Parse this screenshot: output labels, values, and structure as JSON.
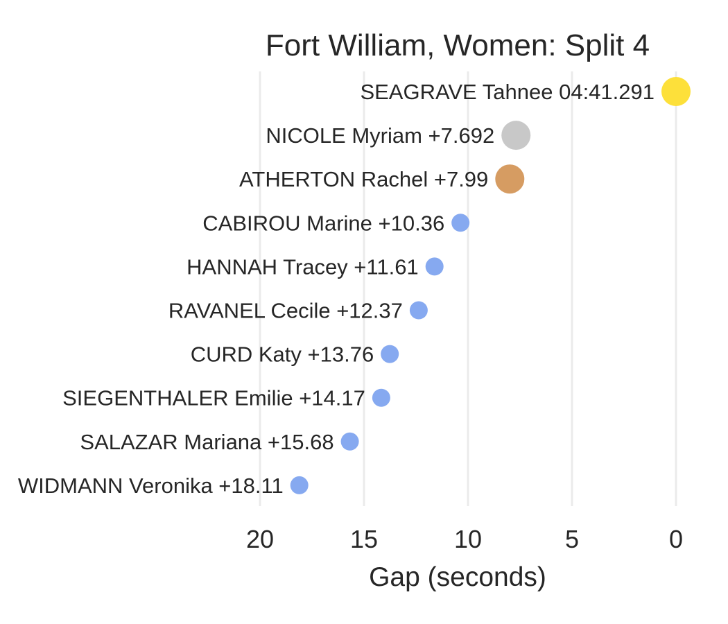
{
  "chart_data": {
    "type": "scatter",
    "title": "Fort William, Women: Split 4",
    "xlabel": "Gap (seconds)",
    "ylabel": "",
    "xlim": [
      20,
      0
    ],
    "x_reversed": true,
    "grid": true,
    "x_ticks": [
      20,
      15,
      10,
      5,
      0
    ],
    "points": [
      {
        "rider": "SEAGRAVE Tahnee",
        "label": "SEAGRAVE Tahnee 04:41.291",
        "gap": 0,
        "color": "#fde03a",
        "medal": "gold"
      },
      {
        "rider": "NICOLE Myriam",
        "label": "NICOLE Myriam +7.692",
        "gap": 7.692,
        "color": "#c8c8c8",
        "medal": "silver"
      },
      {
        "rider": "ATHERTON Rachel",
        "label": "ATHERTON Rachel +7.99",
        "gap": 7.99,
        "color": "#d69c62",
        "medal": "bronze"
      },
      {
        "rider": "CABIROU Marine",
        "label": "CABIROU Marine +10.36",
        "gap": 10.36,
        "color": "#86a9f0",
        "medal": ""
      },
      {
        "rider": "HANNAH Tracey",
        "label": "HANNAH Tracey +11.61",
        "gap": 11.61,
        "color": "#86a9f0",
        "medal": ""
      },
      {
        "rider": "RAVANEL Cecile",
        "label": "RAVANEL Cecile +12.37",
        "gap": 12.37,
        "color": "#86a9f0",
        "medal": ""
      },
      {
        "rider": "CURD Katy",
        "label": "CURD Katy +13.76",
        "gap": 13.76,
        "color": "#86a9f0",
        "medal": ""
      },
      {
        "rider": "SIEGENTHALER Emilie",
        "label": "SIEGENTHALER Emilie +14.17",
        "gap": 14.17,
        "color": "#86a9f0",
        "medal": ""
      },
      {
        "rider": "SALAZAR Mariana",
        "label": "SALAZAR Mariana +15.68",
        "gap": 15.68,
        "color": "#86a9f0",
        "medal": ""
      },
      {
        "rider": "WIDMANN Veronika",
        "label": "WIDMANN Veronika +18.11",
        "gap": 18.11,
        "color": "#86a9f0",
        "medal": ""
      }
    ]
  }
}
